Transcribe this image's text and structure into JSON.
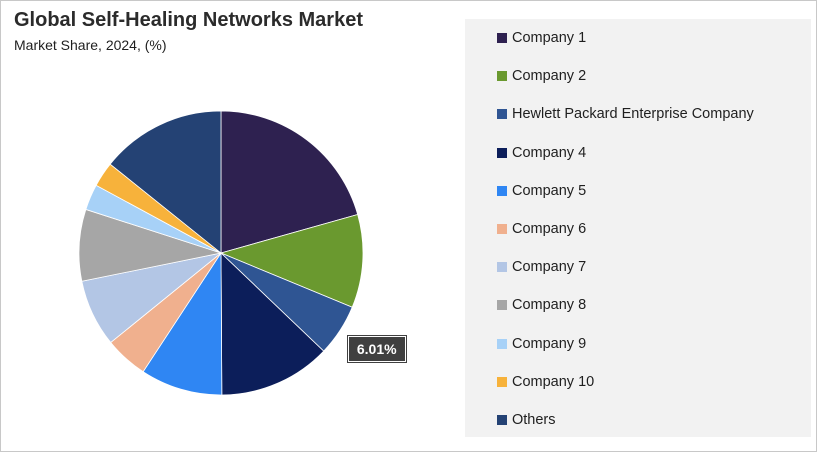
{
  "chart_data": {
    "type": "pie",
    "title": "Global Self-Healing Networks Market",
    "subtitle": "Market Share, 2024, (%)",
    "legend_position": "right",
    "series": [
      {
        "name": "Company 1",
        "value": 21.0,
        "color": "#2e2150"
      },
      {
        "name": "Company 2",
        "value": 10.8,
        "color": "#6a992f"
      },
      {
        "name": "Hewlett Packard Enterprise Company",
        "value": 6.01,
        "color": "#2f5593"
      },
      {
        "name": "Company 4",
        "value": 13.0,
        "color": "#0c1e5a"
      },
      {
        "name": "Company 5",
        "value": 9.5,
        "color": "#2f86f3"
      },
      {
        "name": "Company 6",
        "value": 5.0,
        "color": "#f0b08e"
      },
      {
        "name": "Company 7",
        "value": 7.8,
        "color": "#b3c6e5"
      },
      {
        "name": "Company 8",
        "value": 8.3,
        "color": "#a6a6a6"
      },
      {
        "name": "Company 9",
        "value": 3.0,
        "color": "#a7d1f7"
      },
      {
        "name": "Company 10",
        "value": 2.9,
        "color": "#f7b23b"
      },
      {
        "name": "Others",
        "value": 14.5,
        "color": "#244274"
      }
    ],
    "data_labels": [
      {
        "series": "Hewlett Packard Enterprise Company",
        "text": "6.01%"
      }
    ]
  }
}
